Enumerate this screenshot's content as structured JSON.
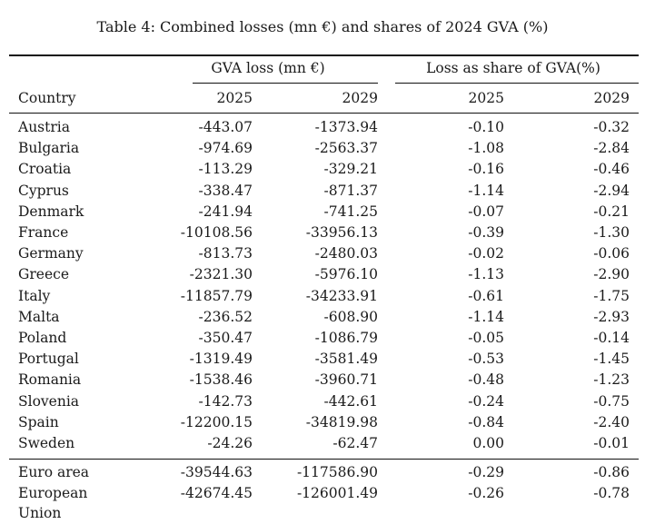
{
  "caption": "Table 4: Combined losses (mn €) and shares of 2024 GVA (%)",
  "header": {
    "group_gva": "GVA loss (mn €)",
    "group_share": "Loss as share of GVA(%)",
    "country": "Country",
    "y2025_a": "2025",
    "y2029_a": "2029",
    "y2025_b": "2025",
    "y2029_b": "2029"
  },
  "rows": [
    {
      "country": "Austria",
      "gva2025": "-443.07",
      "gva2029": "-1373.94",
      "sh2025": "-0.10",
      "sh2029": "-0.32"
    },
    {
      "country": "Bulgaria",
      "gva2025": "-974.69",
      "gva2029": "-2563.37",
      "sh2025": "-1.08",
      "sh2029": "-2.84"
    },
    {
      "country": "Croatia",
      "gva2025": "-113.29",
      "gva2029": "-329.21",
      "sh2025": "-0.16",
      "sh2029": "-0.46"
    },
    {
      "country": "Cyprus",
      "gva2025": "-338.47",
      "gva2029": "-871.37",
      "sh2025": "-1.14",
      "sh2029": "-2.94"
    },
    {
      "country": "Denmark",
      "gva2025": "-241.94",
      "gva2029": "-741.25",
      "sh2025": "-0.07",
      "sh2029": "-0.21"
    },
    {
      "country": "France",
      "gva2025": "-10108.56",
      "gva2029": "-33956.13",
      "sh2025": "-0.39",
      "sh2029": "-1.30"
    },
    {
      "country": "Germany",
      "gva2025": "-813.73",
      "gva2029": "-2480.03",
      "sh2025": "-0.02",
      "sh2029": "-0.06"
    },
    {
      "country": "Greece",
      "gva2025": "-2321.30",
      "gva2029": "-5976.10",
      "sh2025": "-1.13",
      "sh2029": "-2.90"
    },
    {
      "country": "Italy",
      "gva2025": "-11857.79",
      "gva2029": "-34233.91",
      "sh2025": "-0.61",
      "sh2029": "-1.75"
    },
    {
      "country": "Malta",
      "gva2025": "-236.52",
      "gva2029": "-608.90",
      "sh2025": "-1.14",
      "sh2029": "-2.93"
    },
    {
      "country": "Poland",
      "gva2025": "-350.47",
      "gva2029": "-1086.79",
      "sh2025": "-0.05",
      "sh2029": "-0.14"
    },
    {
      "country": "Portugal",
      "gva2025": "-1319.49",
      "gva2029": "-3581.49",
      "sh2025": "-0.53",
      "sh2029": "-1.45"
    },
    {
      "country": "Romania",
      "gva2025": "-1538.46",
      "gva2029": "-3960.71",
      "sh2025": "-0.48",
      "sh2029": "-1.23"
    },
    {
      "country": "Slovenia",
      "gva2025": "-142.73",
      "gva2029": "-442.61",
      "sh2025": "-0.24",
      "sh2029": "-0.75"
    },
    {
      "country": "Spain",
      "gva2025": "-12200.15",
      "gva2029": "-34819.98",
      "sh2025": "-0.84",
      "sh2029": "-2.40"
    },
    {
      "country": "Sweden",
      "gva2025": "-24.26",
      "gva2029": "-62.47",
      "sh2025": "0.00",
      "sh2029": "-0.01"
    }
  ],
  "totals": [
    {
      "country": "Euro area",
      "country2": "",
      "gva2025": "-39544.63",
      "gva2029": "-117586.90",
      "sh2025": "-0.29",
      "sh2029": "-0.86"
    },
    {
      "country": "European",
      "country2": "Union",
      "gva2025": "-42674.45",
      "gva2029": "-126001.49",
      "sh2025": "-0.26",
      "sh2029": "-0.78"
    }
  ]
}
